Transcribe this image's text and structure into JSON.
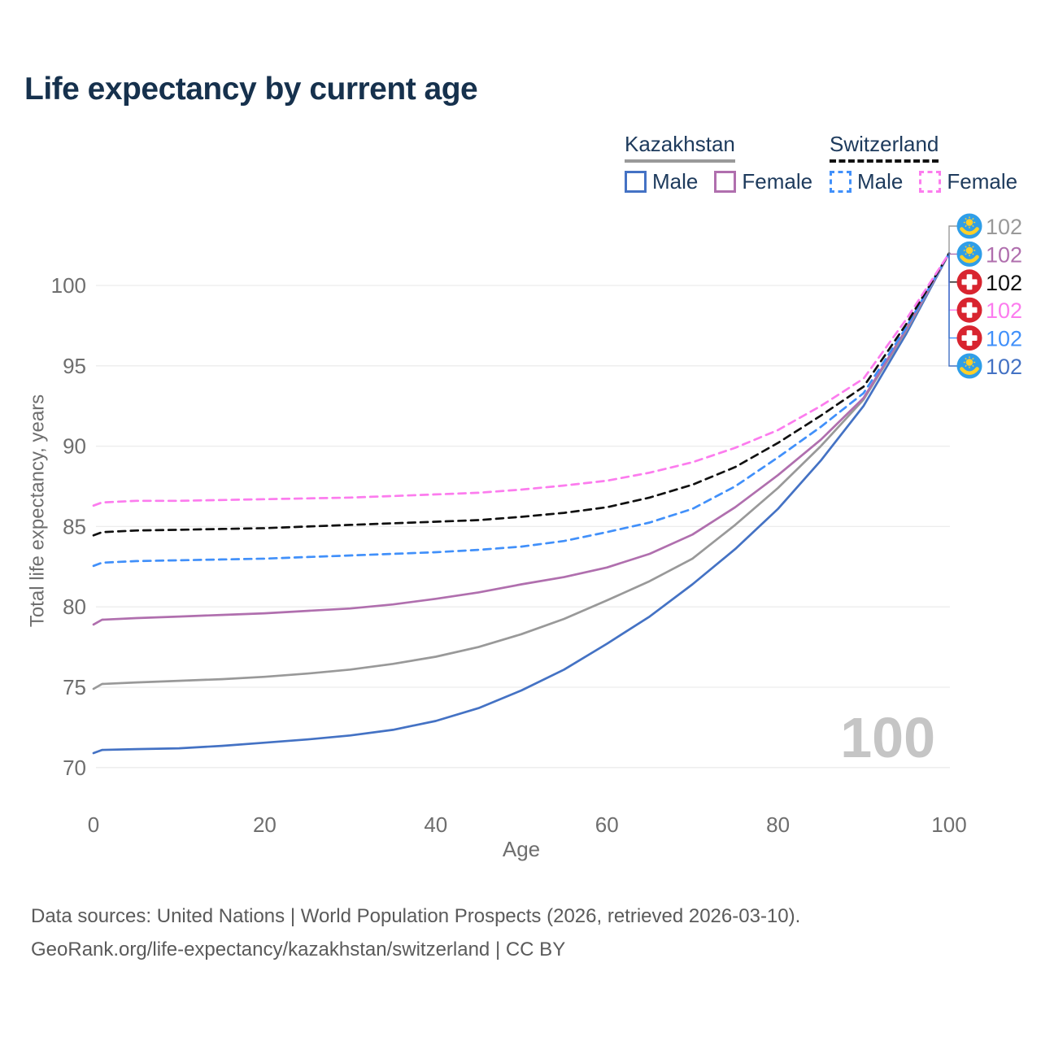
{
  "title": "Life expectancy by current age",
  "legend": {
    "groups": [
      {
        "label": "Kazakhstan",
        "line_color": "#999999",
        "line_style": "solid",
        "items": [
          {
            "label": "Male",
            "color": "#4472c4",
            "style": "solid"
          },
          {
            "label": "Female",
            "color": "#b06fae",
            "style": "solid"
          }
        ]
      },
      {
        "label": "Switzerland",
        "line_color": "#111111",
        "line_style": "dashed",
        "items": [
          {
            "label": "Male",
            "color": "#4190fa",
            "style": "dashed"
          },
          {
            "label": "Female",
            "color": "#fc7cee",
            "style": "dashed"
          }
        ]
      }
    ]
  },
  "watermark": {
    "text": "100"
  },
  "footer": {
    "line1": "Data sources: United Nations | World Population Prospects (2026, retrieved 2026-03-10).",
    "line2": "GeoRank.org/life-expectancy/kazakhstan/switzerland | CC BY"
  },
  "chart_data": {
    "type": "line",
    "title": "Life expectancy by current age",
    "xlabel": "Age",
    "ylabel": "Total life expectancy, years",
    "xlim": [
      0,
      100
    ],
    "ylim": [
      68,
      103.5
    ],
    "xticks": [
      0,
      20,
      40,
      60,
      80,
      100
    ],
    "yticks": [
      70,
      75,
      80,
      85,
      90,
      95,
      100
    ],
    "grid": "horizontal-only",
    "legend_position": "top-right",
    "axis_text_color": "#6e6e6e",
    "grid_color": "#ececec",
    "series": [
      {
        "id": "kz_male",
        "name": "Kazakhstan Male",
        "country": "Kazakhstan",
        "sex": "male",
        "color": "#4472c4",
        "dash": "solid",
        "points": [
          [
            0,
            70.9
          ],
          [
            1,
            71.1
          ],
          [
            5,
            71.15
          ],
          [
            10,
            71.2
          ],
          [
            15,
            71.35
          ],
          [
            20,
            71.55
          ],
          [
            25,
            71.75
          ],
          [
            30,
            72.0
          ],
          [
            35,
            72.35
          ],
          [
            40,
            72.9
          ],
          [
            45,
            73.7
          ],
          [
            50,
            74.8
          ],
          [
            55,
            76.1
          ],
          [
            60,
            77.7
          ],
          [
            65,
            79.4
          ],
          [
            70,
            81.4
          ],
          [
            75,
            83.6
          ],
          [
            80,
            86.1
          ],
          [
            85,
            89.1
          ],
          [
            90,
            92.5
          ],
          [
            95,
            97.0
          ],
          [
            100,
            102
          ]
        ]
      },
      {
        "id": "kz_all",
        "name": "Kazakhstan (both sexes)",
        "country": "Kazakhstan",
        "sex": "all",
        "color": "#999999",
        "dash": "solid",
        "points": [
          [
            0,
            74.9
          ],
          [
            1,
            75.2
          ],
          [
            5,
            75.3
          ],
          [
            10,
            75.4
          ],
          [
            15,
            75.5
          ],
          [
            20,
            75.65
          ],
          [
            25,
            75.85
          ],
          [
            30,
            76.1
          ],
          [
            35,
            76.45
          ],
          [
            40,
            76.9
          ],
          [
            45,
            77.5
          ],
          [
            50,
            78.3
          ],
          [
            55,
            79.25
          ],
          [
            60,
            80.4
          ],
          [
            65,
            81.6
          ],
          [
            70,
            83.0
          ],
          [
            75,
            85.1
          ],
          [
            80,
            87.4
          ],
          [
            85,
            90.0
          ],
          [
            90,
            92.9
          ],
          [
            95,
            97.2
          ],
          [
            100,
            102
          ]
        ]
      },
      {
        "id": "kz_female",
        "name": "Kazakhstan Female",
        "country": "Kazakhstan",
        "sex": "female",
        "color": "#b06fae",
        "dash": "solid",
        "points": [
          [
            0,
            78.9
          ],
          [
            1,
            79.2
          ],
          [
            5,
            79.3
          ],
          [
            10,
            79.4
          ],
          [
            15,
            79.5
          ],
          [
            20,
            79.6
          ],
          [
            25,
            79.75
          ],
          [
            30,
            79.9
          ],
          [
            35,
            80.15
          ],
          [
            40,
            80.5
          ],
          [
            45,
            80.9
          ],
          [
            50,
            81.4
          ],
          [
            55,
            81.85
          ],
          [
            60,
            82.45
          ],
          [
            65,
            83.3
          ],
          [
            70,
            84.5
          ],
          [
            75,
            86.2
          ],
          [
            80,
            88.2
          ],
          [
            85,
            90.4
          ],
          [
            90,
            93.0
          ],
          [
            95,
            97.3
          ],
          [
            100,
            102
          ]
        ]
      },
      {
        "id": "ch_male",
        "name": "Switzerland Male",
        "country": "Switzerland",
        "sex": "male",
        "color": "#4190fa",
        "dash": "dashed",
        "points": [
          [
            0,
            82.55
          ],
          [
            1,
            82.75
          ],
          [
            5,
            82.85
          ],
          [
            10,
            82.9
          ],
          [
            15,
            82.95
          ],
          [
            20,
            83.0
          ],
          [
            25,
            83.1
          ],
          [
            30,
            83.2
          ],
          [
            35,
            83.3
          ],
          [
            40,
            83.4
          ],
          [
            45,
            83.55
          ],
          [
            50,
            83.75
          ],
          [
            55,
            84.1
          ],
          [
            60,
            84.65
          ],
          [
            65,
            85.25
          ],
          [
            70,
            86.1
          ],
          [
            75,
            87.5
          ],
          [
            80,
            89.3
          ],
          [
            85,
            91.2
          ],
          [
            90,
            93.3
          ],
          [
            95,
            97.4
          ],
          [
            100,
            102
          ]
        ]
      },
      {
        "id": "ch_all",
        "name": "Switzerland (both sexes)",
        "country": "Switzerland",
        "sex": "all",
        "color": "#111111",
        "dash": "dashed",
        "points": [
          [
            0,
            84.45
          ],
          [
            1,
            84.65
          ],
          [
            5,
            84.75
          ],
          [
            10,
            84.8
          ],
          [
            15,
            84.85
          ],
          [
            20,
            84.9
          ],
          [
            25,
            85.0
          ],
          [
            30,
            85.1
          ],
          [
            35,
            85.2
          ],
          [
            40,
            85.3
          ],
          [
            45,
            85.4
          ],
          [
            50,
            85.6
          ],
          [
            55,
            85.85
          ],
          [
            60,
            86.2
          ],
          [
            65,
            86.8
          ],
          [
            70,
            87.6
          ],
          [
            75,
            88.7
          ],
          [
            80,
            90.2
          ],
          [
            85,
            91.9
          ],
          [
            90,
            93.7
          ],
          [
            95,
            97.6
          ],
          [
            100,
            102
          ]
        ]
      },
      {
        "id": "ch_female",
        "name": "Switzerland Female",
        "country": "Switzerland",
        "sex": "female",
        "color": "#fc7cee",
        "dash": "dashed",
        "points": [
          [
            0,
            86.3
          ],
          [
            1,
            86.5
          ],
          [
            5,
            86.6
          ],
          [
            10,
            86.6
          ],
          [
            15,
            86.65
          ],
          [
            20,
            86.7
          ],
          [
            25,
            86.75
          ],
          [
            30,
            86.8
          ],
          [
            35,
            86.9
          ],
          [
            40,
            87.0
          ],
          [
            45,
            87.1
          ],
          [
            50,
            87.3
          ],
          [
            55,
            87.55
          ],
          [
            60,
            87.85
          ],
          [
            65,
            88.35
          ],
          [
            70,
            89.0
          ],
          [
            75,
            89.9
          ],
          [
            80,
            91.0
          ],
          [
            85,
            92.5
          ],
          [
            90,
            94.2
          ],
          [
            95,
            97.9
          ],
          [
            100,
            102
          ]
        ]
      }
    ],
    "end_markers": [
      {
        "series": "kz_all",
        "flag": "kazakhstan",
        "label": "102"
      },
      {
        "series": "kz_female",
        "flag": "kazakhstan",
        "label": "102"
      },
      {
        "series": "ch_all",
        "flag": "switzerland",
        "label": "102"
      },
      {
        "series": "ch_female",
        "flag": "switzerland",
        "label": "102"
      },
      {
        "series": "ch_male",
        "flag": "switzerland",
        "label": "102"
      },
      {
        "series": "kz_male",
        "flag": "kazakhstan",
        "label": "102"
      }
    ],
    "flag_colors": {
      "kazakhstan": {
        "bg": "#2f9ee8",
        "emblem": "#ffd028"
      },
      "switzerland": {
        "bg": "#d8242f",
        "cross": "#ffffff"
      }
    }
  }
}
